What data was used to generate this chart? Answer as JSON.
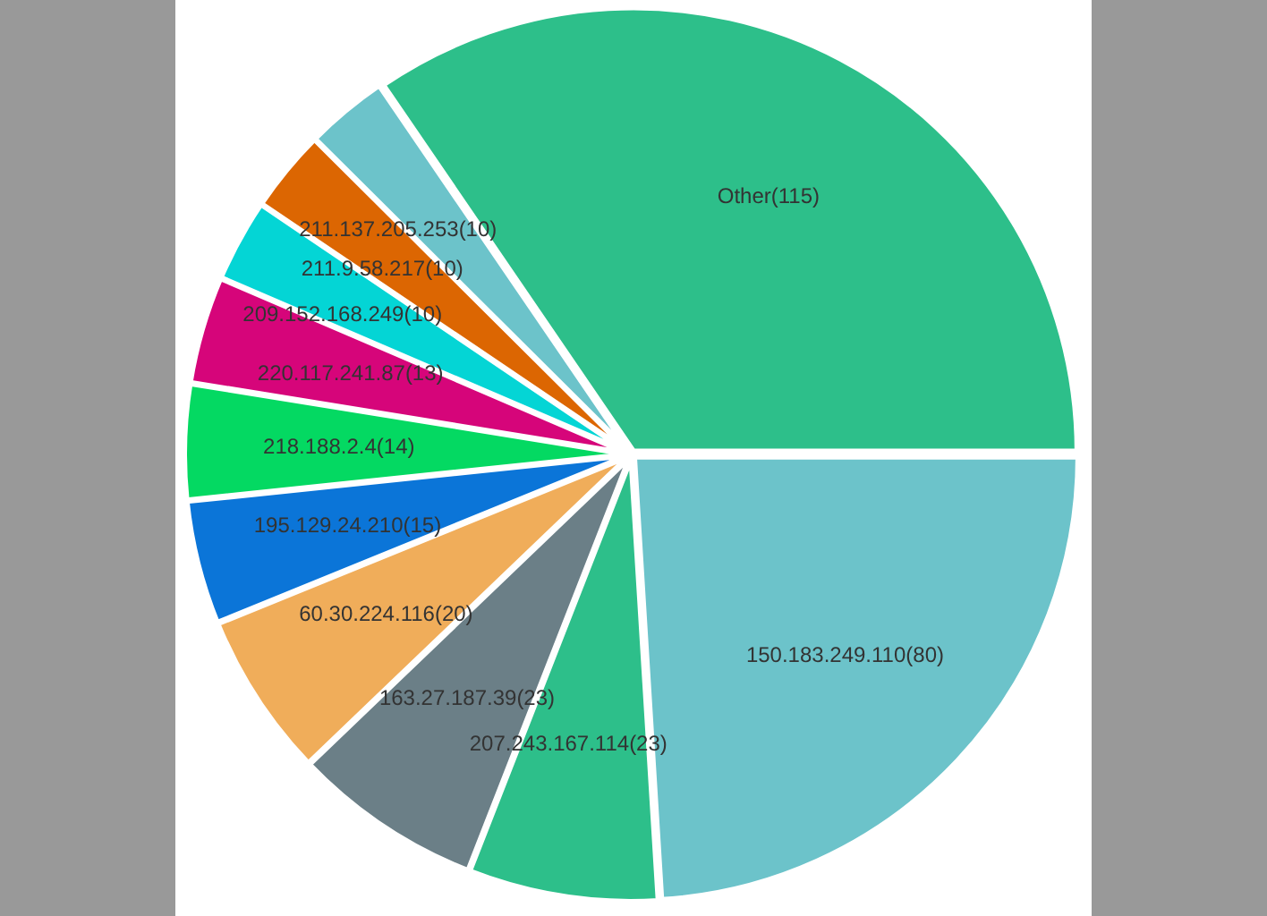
{
  "chart_data": {
    "type": "pie",
    "categories": [
      "150.183.249.110",
      "207.243.167.114",
      "163.27.187.39",
      "60.30.224.116",
      "195.129.24.210",
      "218.188.2.4",
      "220.117.241.87",
      "209.152.168.249",
      "211.9.58.217",
      "211.137.205.253",
      "Other"
    ],
    "values": [
      80,
      23,
      23,
      20,
      15,
      14,
      13,
      10,
      10,
      10,
      115
    ],
    "value_labels": [
      "(80)",
      "(23)",
      "(23)",
      "(20)",
      "(15)",
      "(14)",
      "(13)",
      "(10)",
      "(10)",
      "(10)",
      "(115)"
    ],
    "colors": [
      "#6cc3ca",
      "#2dbf8a",
      "#6b7f87",
      "#f0ad5a",
      "#0b75d8",
      "#04d962",
      "#d6057a",
      "#04d5d5",
      "#dc6602",
      "#6cc3ca",
      "#2dbf8a"
    ],
    "legend": false
  }
}
